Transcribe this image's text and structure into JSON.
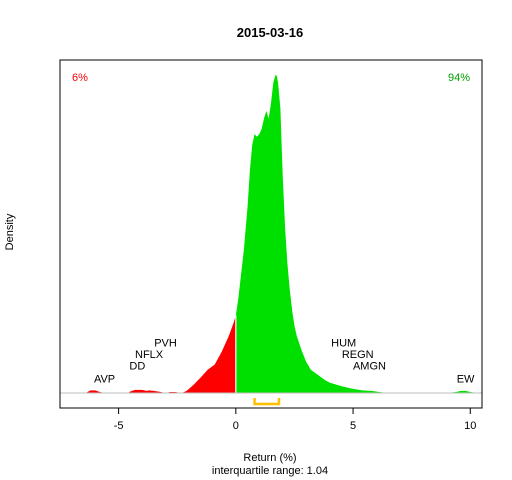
{
  "chart_data": {
    "type": "area",
    "title": "2015-03-16",
    "xlabel": "Return (%)",
    "ylabel": "Density",
    "subtitle": "interquartile range: 1.04",
    "xlim": [
      -7.5,
      10.5
    ],
    "ylim": [
      0,
      0.62
    ],
    "x_ticks": [
      -5,
      0,
      5,
      10
    ],
    "x_tick_labels": [
      "-5",
      "0",
      "5",
      "10"
    ],
    "grid": false,
    "pct_negative": "6%",
    "pct_positive": "94%",
    "colors": {
      "negative": "#ff0000",
      "positive": "#00e000",
      "iqr": "#ffc000",
      "baseline": "#bebebe"
    },
    "iqr": [
      0.8,
      1.84
    ],
    "density_x": [
      -6.4,
      -6.2,
      -6.0,
      -5.8,
      -5.6,
      -5.4,
      -5.0,
      -4.6,
      -4.5,
      -4.3,
      -4.0,
      -3.8,
      -3.7,
      -3.5,
      -3.2,
      -3.0,
      -2.8,
      -2.6,
      -2.3,
      -2.1,
      -2.0,
      -1.8,
      -1.5,
      -1.2,
      -0.9,
      -0.6,
      -0.3,
      -0.1,
      0.0,
      0.1,
      0.2,
      0.35,
      0.5,
      0.6,
      0.7,
      0.8,
      0.9,
      1.0,
      1.1,
      1.2,
      1.3,
      1.4,
      1.5,
      1.6,
      1.7,
      1.75,
      1.8,
      1.9,
      2.0,
      2.1,
      2.2,
      2.3,
      2.4,
      2.5,
      2.6,
      2.8,
      3.0,
      3.2,
      3.5,
      3.8,
      4.0,
      4.3,
      4.6,
      5.0,
      5.4,
      5.8,
      6.1,
      6.5,
      7.0,
      7.5,
      8.0,
      8.5,
      9.0,
      9.4,
      9.6,
      9.8,
      10.0,
      10.3
    ],
    "density_y": [
      0,
      0.005,
      0.005,
      0.002,
      0,
      0,
      0,
      0,
      0.003,
      0.006,
      0.006,
      0.004,
      0.005,
      0.004,
      0.002,
      0,
      0.002,
      0.002,
      0,
      0.004,
      0.008,
      0.016,
      0.03,
      0.045,
      0.055,
      0.08,
      0.11,
      0.135,
      0.15,
      0.18,
      0.22,
      0.28,
      0.36,
      0.43,
      0.48,
      0.5,
      0.495,
      0.5,
      0.51,
      0.53,
      0.545,
      0.53,
      0.56,
      0.6,
      0.615,
      0.612,
      0.6,
      0.55,
      0.42,
      0.32,
      0.25,
      0.2,
      0.16,
      0.13,
      0.11,
      0.083,
      0.06,
      0.045,
      0.035,
      0.025,
      0.02,
      0.016,
      0.012,
      0.008,
      0.005,
      0.004,
      0.002,
      0,
      0,
      0,
      0,
      0,
      0,
      0.002,
      0.004,
      0.004,
      0.002,
      0
    ],
    "annotations": [
      {
        "label": "AVP",
        "x": -5.6,
        "y": 0.02
      },
      {
        "label": "DD",
        "x": -4.2,
        "y": 0.045
      },
      {
        "label": "NFLX",
        "x": -3.7,
        "y": 0.068
      },
      {
        "label": "PVH",
        "x": -3.0,
        "y": 0.09
      },
      {
        "label": "HUM",
        "x": 4.6,
        "y": 0.09
      },
      {
        "label": "REGN",
        "x": 5.2,
        "y": 0.068
      },
      {
        "label": "AMGN",
        "x": 5.7,
        "y": 0.045
      },
      {
        "label": "EW",
        "x": 9.8,
        "y": 0.02
      }
    ]
  }
}
